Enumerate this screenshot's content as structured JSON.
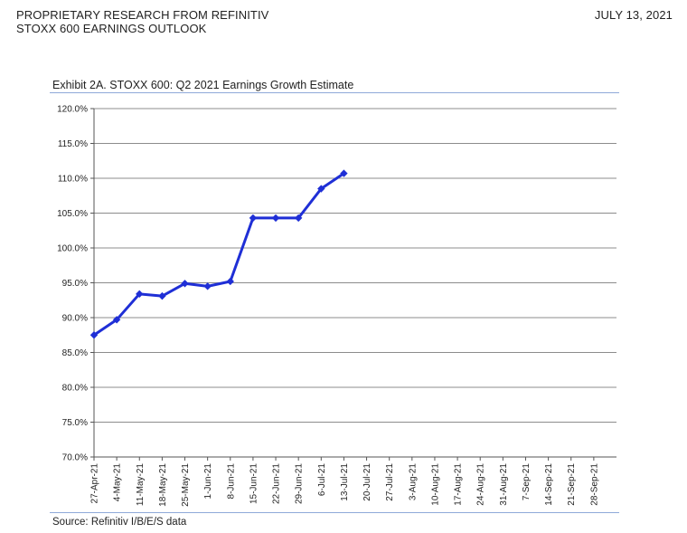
{
  "header": {
    "line1": "PROPRIETARY RESEARCH FROM REFINITIV",
    "line2": "STOXX 600 EARNINGS OUTLOOK",
    "date": "JULY 13, 2021"
  },
  "exhibit": {
    "title": "Exhibit 2A.  STOXX 600: Q2 2021 Earnings Growth Estimate",
    "source": "Source: Refinitiv I/B/E/S data"
  },
  "chart_data": {
    "type": "line",
    "title": "Exhibit 2A.  STOXX 600: Q2 2021 Earnings Growth Estimate",
    "xlabel": "",
    "ylabel": "",
    "categories": [
      "27-Apr-21",
      "4-May-21",
      "11-May-21",
      "18-May-21",
      "25-May-21",
      "1-Jun-21",
      "8-Jun-21",
      "15-Jun-21",
      "22-Jun-21",
      "29-Jun-21",
      "6-Jul-21",
      "13-Jul-21",
      "20-Jul-21",
      "27-Jul-21",
      "3-Aug-21",
      "10-Aug-21",
      "17-Aug-21",
      "24-Aug-21",
      "31-Aug-21",
      "7-Sep-21",
      "14-Sep-21",
      "21-Sep-21",
      "28-Sep-21"
    ],
    "series": [
      {
        "values": [
          87.5,
          89.7,
          93.4,
          93.1,
          94.9,
          94.5,
          95.2,
          104.3,
          104.3,
          104.3,
          108.5,
          110.7,
          null,
          null,
          null,
          null,
          null,
          null,
          null,
          null,
          null,
          null,
          null
        ],
        "color": "#1f2fd6"
      }
    ],
    "ylim": [
      70,
      120
    ],
    "yticks": [
      "70.0%",
      "75.0%",
      "80.0%",
      "85.0%",
      "90.0%",
      "95.0%",
      "100.0%",
      "105.0%",
      "110.0%",
      "115.0%",
      "120.0%"
    ],
    "grid": true,
    "legend": "none"
  }
}
